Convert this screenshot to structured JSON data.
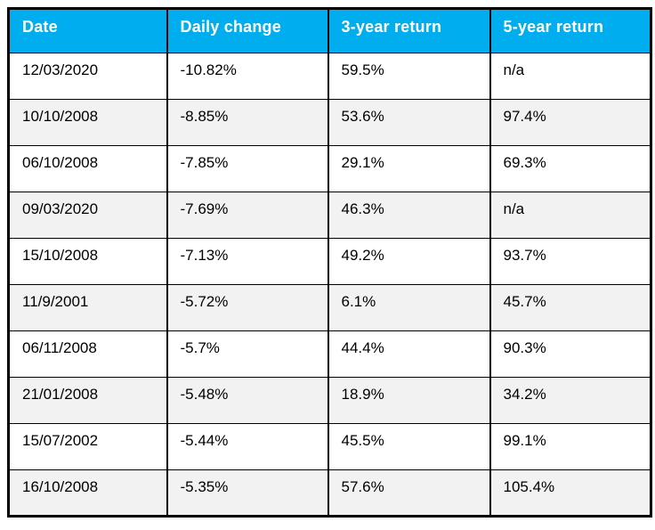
{
  "chart_data": {
    "type": "table",
    "columns": [
      "Date",
      "Daily change",
      "3-year return",
      "5-year return"
    ],
    "rows": [
      [
        "12/03/2020",
        "-10.82%",
        "59.5%",
        "n/a"
      ],
      [
        "10/10/2008",
        "-8.85%",
        "53.6%",
        "97.4%"
      ],
      [
        "06/10/2008",
        "-7.85%",
        "29.1%",
        "69.3%"
      ],
      [
        "09/03/2020",
        "-7.69%",
        "46.3%",
        "n/a"
      ],
      [
        "15/10/2008",
        "-7.13%",
        "49.2%",
        "93.7%"
      ],
      [
        "11/9/2001",
        "-5.72%",
        "6.1%",
        "45.7%"
      ],
      [
        "06/11/2008",
        "-5.7%",
        "44.4%",
        "90.3%"
      ],
      [
        "21/01/2008",
        "-5.48%",
        "18.9%",
        "34.2%"
      ],
      [
        "15/07/2002",
        "-5.44%",
        "45.5%",
        "99.1%"
      ],
      [
        "16/10/2008",
        "-5.35%",
        "57.6%",
        "105.4%"
      ]
    ],
    "layout": {
      "banded_rows": true,
      "header_position": "top"
    }
  },
  "colors": {
    "header_bg": "#00AEEF",
    "header_text": "#FFFFFF",
    "row_band_bg": "#F2F2F2",
    "row_bg": "#FFFFFF",
    "border": "#000000",
    "body_text": "#000000"
  }
}
